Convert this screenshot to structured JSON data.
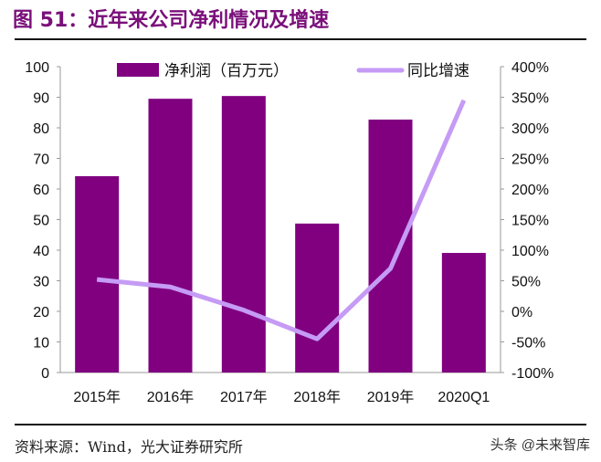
{
  "title": "图 51：近年来公司净利情况及增速",
  "source": "资料来源：Wind，光大证券研究所",
  "watermark": "头条 @未来智库",
  "chart_data": {
    "type": "bar+line",
    "categories": [
      "2015年",
      "2016年",
      "2017年",
      "2018年",
      "2019年",
      "2020Q1"
    ],
    "series": [
      {
        "name": "净利润（百万元）",
        "type": "bar",
        "axis": "left",
        "color": "#800080",
        "values": [
          64.2,
          89.5,
          90.4,
          48.7,
          82.7,
          39.1
        ]
      },
      {
        "name": "同比增速",
        "type": "line",
        "axis": "right",
        "color": "#c59bf5",
        "values": [
          52,
          40,
          2,
          -45,
          70,
          345
        ]
      }
    ],
    "left_axis": {
      "range": [
        0,
        100
      ],
      "ticks": [
        "0",
        "10",
        "20",
        "30",
        "40",
        "50",
        "60",
        "70",
        "80",
        "90",
        "100"
      ]
    },
    "right_axis": {
      "range": [
        -100,
        400
      ],
      "ticks": [
        "-100%",
        "-50%",
        "0%",
        "50%",
        "100%",
        "150%",
        "200%",
        "250%",
        "300%",
        "350%",
        "400%"
      ]
    },
    "legend": "top",
    "grid": false
  }
}
